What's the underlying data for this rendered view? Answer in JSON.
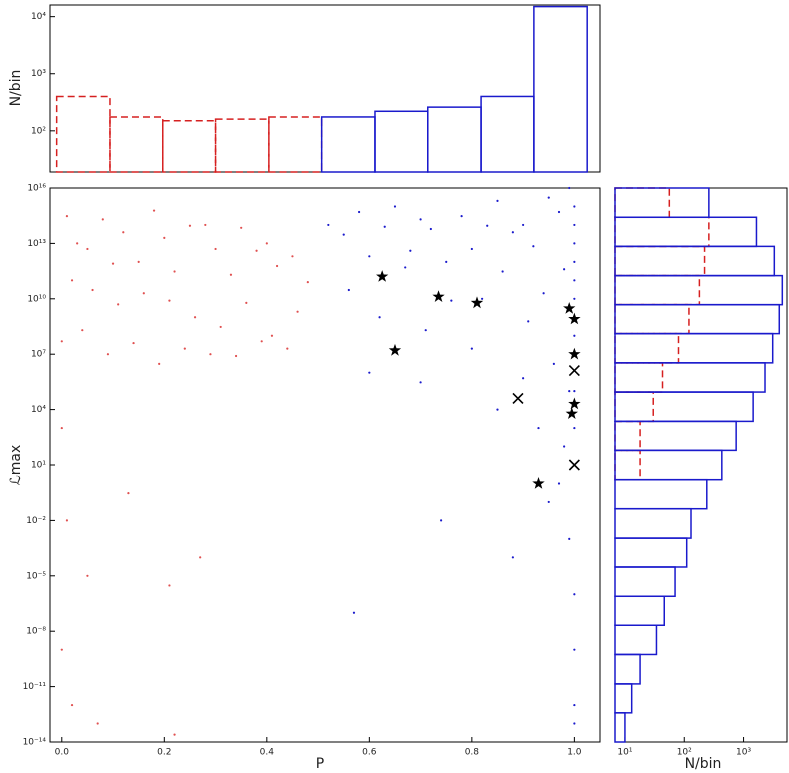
{
  "chart_data": [
    {
      "type": "histogram",
      "orientation": "vertical",
      "ylabel": "N/bin",
      "bins": [
        -0.01,
        0.094,
        0.197,
        0.3,
        0.404,
        0.507,
        0.611,
        0.714,
        0.818,
        0.921,
        1.025
      ],
      "series": [
        {
          "color": "#d62020",
          "linestyle": "dashed",
          "values": [
            400,
            175,
            150,
            160,
            175,
            null,
            null,
            null,
            null,
            null
          ]
        },
        {
          "color": "#1a1acc",
          "linestyle": "solid",
          "values": [
            null,
            null,
            null,
            null,
            null,
            175,
            220,
            260,
            400,
            15000
          ]
        }
      ],
      "xlim": [
        -0.023,
        1.05
      ],
      "ylim": [
        19,
        16000
      ],
      "log_y": true,
      "yticks": [
        {
          "value": 100,
          "label": "10²"
        },
        {
          "value": 1000,
          "label": "10³"
        },
        {
          "value": 10000,
          "label": "10⁴"
        }
      ]
    },
    {
      "type": "scatter",
      "xlabel": "P",
      "ylabel": "ℒmax",
      "series": [
        {
          "color": "#e05050",
          "marker": "dot",
          "x": [
            0.01,
            0.03,
            0.05,
            0.08,
            0.1,
            0.12,
            0.15,
            0.18,
            0.2,
            0.22,
            0.25,
            0.28,
            0.3,
            0.33,
            0.35,
            0.38,
            0.4,
            0.42,
            0.45,
            0.48,
            0.02,
            0.06,
            0.11,
            0.16,
            0.21,
            0.26,
            0.31,
            0.36,
            0.41,
            0.46,
            0.0,
            0.04,
            0.09,
            0.14,
            0.19,
            0.24,
            0.29,
            0.34,
            0.39,
            0.44,
            0.0,
            0.01,
            0.05,
            0.13,
            0.21,
            0.27,
            0.0,
            0.02,
            0.07,
            0.22
          ],
          "values": [
            300000000000000.0,
            10000000000000.0,
            5000000000000.0,
            200000000000000.0,
            800000000000.0,
            40000000000000.0,
            1000000000000.0,
            600000000000000.0,
            20000000000000.0,
            300000000000.0,
            90000000000000.0,
            100000000000000.0,
            5000000000000.0,
            200000000000.0,
            70000000000000.0,
            4000000000000.0,
            10000000000000.0,
            600000000000.0,
            2000000000000.0,
            80000000000.0,
            100000000000.0,
            30000000000.0,
            5000000000.0,
            20000000000.0,
            8000000000.0,
            1000000000.0,
            300000000.0,
            6000000000.0,
            100000000.0,
            2000000000.0,
            50000000.0,
            200000000.0,
            10000000.0,
            40000000.0,
            3000000.0,
            20000000.0,
            10000000.0,
            8000000.0,
            50000000.0,
            20000000.0,
            1000.0,
            0.01,
            1e-05,
            0.3,
            3e-06,
            0.0001,
            1e-09,
            1e-12,
            1e-13,
            2.5e-14
          ]
        },
        {
          "color": "#1a1acc",
          "marker": "dot",
          "x": [
            0.52,
            0.55,
            0.58,
            0.6,
            0.63,
            0.65,
            0.68,
            0.7,
            0.72,
            0.75,
            0.78,
            0.8,
            0.83,
            0.85,
            0.88,
            0.9,
            0.92,
            0.95,
            0.97,
            0.99,
            0.56,
            0.62,
            0.67,
            0.71,
            0.76,
            0.82,
            0.86,
            0.91,
            0.94,
            0.98,
            0.6,
            0.7,
            0.8,
            0.85,
            0.9,
            0.93,
            0.96,
            0.98,
            0.99,
            1.0,
            0.57,
            0.74,
            0.88,
            0.95,
            0.97,
            0.99,
            1.0,
            1.0,
            1.0,
            1.0,
            1.0,
            1.0,
            1.0,
            1.0,
            1.0,
            1.0,
            1.0,
            1.0,
            1.0,
            1.0
          ],
          "values": [
            100000000000000.0,
            30000000000000.0,
            500000000000000.0,
            2000000000000.0,
            80000000000000.0,
            1000000000000000.0,
            4000000000000.0,
            200000000000000.0,
            60000000000000.0,
            1000000000000.0,
            300000000000000.0,
            5000000000000.0,
            90000000000000.0,
            2000000000000000.0,
            40000000000000.0,
            100000000000000.0,
            7000000000000.0,
            3000000000000000.0,
            500000000000000.0,
            1e+16,
            30000000000.0,
            1000000000.0,
            500000000000.0,
            200000000.0,
            8000000000.0,
            10000000000.0,
            300000000000.0,
            600000000.0,
            20000000000.0,
            400000000000.0,
            1000000.0,
            300000.0,
            20000000.0,
            10000.0,
            500000.0,
            1000.0,
            3000000.0,
            100.0,
            100000.0,
            100000000.0,
            1e-07,
            0.01,
            0.0001,
            0.1,
            1,
            0.001,
            1e-06,
            1e-09,
            1e-12,
            1e-13,
            1000000000000000.0,
            100000000000000.0,
            10000000000000.0,
            1000000000000.0,
            100000000000.0,
            10000000000.0,
            1000000000.0,
            10000000.0,
            100000.0,
            1000.0
          ]
        },
        {
          "color": "#000000",
          "marker": "star",
          "x": [
            0.625,
            0.735,
            0.81,
            0.65,
            0.99,
            1.0,
            1.0,
            1.0,
            0.995,
            0.93
          ],
          "values": [
            160000000000.0,
            13000000000.0,
            6000000000.0,
            16000000.0,
            3000000000.0,
            800000000.0,
            10000000.0,
            20000.0,
            6000.0,
            1
          ]
        },
        {
          "color": "#000000",
          "marker": "x",
          "x": [
            0.89,
            1.0,
            1.0
          ],
          "values": [
            40000.0,
            1300000.0,
            10
          ]
        }
      ],
      "xlim": [
        -0.023,
        1.05
      ],
      "ylim": [
        1e-14,
        1e+16
      ],
      "log_y": true,
      "xticks": [
        {
          "value": 0,
          "label": "0.0"
        },
        {
          "value": 0.2,
          "label": "0.2"
        },
        {
          "value": 0.4,
          "label": "0.4"
        },
        {
          "value": 0.6,
          "label": "0.6"
        },
        {
          "value": 0.8,
          "label": "0.8"
        },
        {
          "value": 1,
          "label": "1.0"
        }
      ],
      "yticks": [
        {
          "value": 1e-14,
          "label": "10⁻¹⁴"
        },
        {
          "value": 1e-11,
          "label": "10⁻¹¹"
        },
        {
          "value": 1e-08,
          "label": "10⁻⁸"
        },
        {
          "value": 1e-05,
          "label": "10⁻⁵"
        },
        {
          "value": 0.01,
          "label": "10⁻²"
        },
        {
          "value": 10,
          "label": "10¹"
        },
        {
          "value": 10000.0,
          "label": "10⁴"
        },
        {
          "value": 10000000.0,
          "label": "10⁷"
        },
        {
          "value": 10000000000.0,
          "label": "10¹⁰"
        },
        {
          "value": 10000000000000.0,
          "label": "10¹³"
        },
        {
          "value": 1e+16,
          "label": "10¹⁶"
        }
      ]
    },
    {
      "type": "histogram",
      "orientation": "horizontal",
      "xlabel": "N/bin",
      "bins": [
        1e-14,
        3.8e-13,
        1.4e-11,
        5.5e-10,
        2.1e-08,
        7.8e-07,
        3e-05,
        0.0011,
        0.043,
        1.6,
        62,
        2300.0,
        89000.0,
        3400000.0,
        130000000.0,
        4800000000.0,
        180000000000.0,
        6900000000000.0,
        260000000000000.0,
        1e+16
      ],
      "series": [
        {
          "color": "#d62020",
          "linestyle": "dashed",
          "values": [
            null,
            null,
            null,
            null,
            null,
            null,
            null,
            null,
            null,
            18,
            18,
            30,
            43,
            80,
            120,
            180,
            220,
            260,
            56
          ]
        },
        {
          "color": "#1a1acc",
          "linestyle": "solid",
          "values": [
            10,
            13,
            18,
            34,
            46,
            70,
            110,
            130,
            240,
            430,
            750,
            1450,
            2300,
            3100,
            4000,
            4500,
            3300,
            1650,
            260
          ]
        }
      ],
      "xlim": [
        6.8,
        5400
      ],
      "log_x": true,
      "ylim": [
        1e-14,
        1e+16
      ],
      "log_y": true,
      "xticks": [
        {
          "value": 10,
          "label": "10¹"
        },
        {
          "value": 100,
          "label": "10²"
        },
        {
          "value": 1000,
          "label": "10³"
        }
      ]
    }
  ]
}
